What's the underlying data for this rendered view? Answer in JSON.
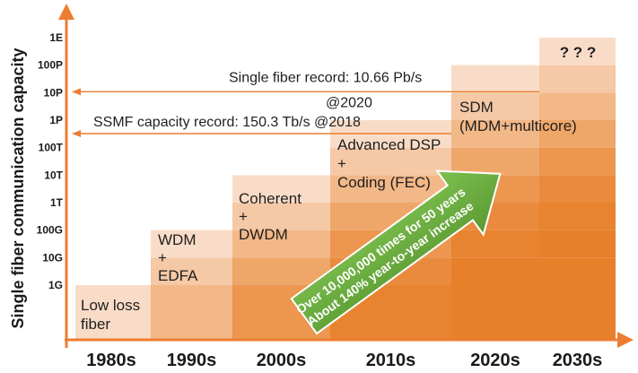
{
  "chart_data": {
    "type": "bar",
    "title": "",
    "ylabel": "Single fiber communication capacity",
    "xlabel": "",
    "y_scale": "log",
    "y_ticks": [
      "1G",
      "10G",
      "100G",
      "1T",
      "10T",
      "100T",
      "1P",
      "10P",
      "100P",
      "1E"
    ],
    "categories": [
      "1980s",
      "1990s",
      "2000s",
      "2010s",
      "2020s",
      "2030s"
    ],
    "values": [
      "1G",
      "100G",
      "10T",
      "1P",
      "100P",
      "1E"
    ],
    "step_labels": [
      [
        "Low loss",
        "fiber"
      ],
      [
        "WDM",
        "+",
        "EDFA"
      ],
      [
        "Coherent",
        "+",
        "DWDM"
      ],
      [
        "Advanced DSP",
        "+",
        "Coding (FEC)"
      ],
      [
        "SDM",
        "(MDM+multicore)"
      ],
      [
        "? ? ?"
      ]
    ],
    "annotations": [
      {
        "text": [
          "Single fiber  record: 10.66 Pb/s",
          "@2020"
        ],
        "value": "10P"
      },
      {
        "text": [
          "SSMF capacity record: 150.3 Tb/s @2018"
        ],
        "value": "1P"
      }
    ],
    "trend_arrow": {
      "lines": [
        "Over 10,000,000 times for 50 years",
        "About 140% year-to-year increase"
      ]
    },
    "colors": {
      "axis": "#ed7d31",
      "arrow": "#6aaa3d",
      "annotation_line": "#ed7d31",
      "bands": [
        "#f9dcc7",
        "#f5c8a6",
        "#f2b887",
        "#efa669",
        "#ec9650",
        "#ea8a3d",
        "#e8832f",
        "#e6802b"
      ]
    },
    "grid": false,
    "legend": "none"
  }
}
